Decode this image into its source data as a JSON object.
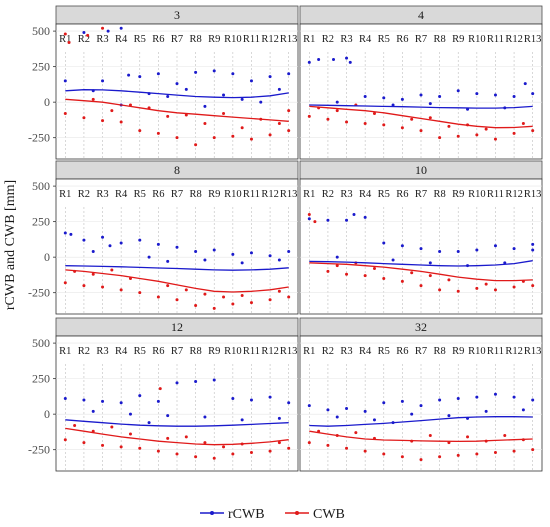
{
  "chart_data": {
    "type": "scatter",
    "ylabel": "rCWB and CWB [mm]",
    "xlabel": "",
    "ylim": [
      -400,
      550
    ],
    "yticks": [
      500,
      250,
      0,
      -250
    ],
    "region_labels": [
      "R1",
      "R2",
      "R3",
      "R4",
      "R5",
      "R6",
      "R7",
      "R8",
      "R9",
      "R10",
      "R11",
      "R12",
      "R13"
    ],
    "grid": true,
    "legend": {
      "placement": "bottom",
      "items": [
        {
          "name": "rCWB",
          "color": "#1a1acc"
        },
        {
          "name": "CWB",
          "color": "#e01a1a"
        }
      ]
    },
    "panels": [
      {
        "title": "3",
        "rCWB_trend": [
          80,
          88,
          86,
          80,
          70,
          60,
          50,
          40,
          35,
          32,
          35,
          45,
          65
        ],
        "CWB_trend": [
          20,
          10,
          0,
          -20,
          -40,
          -60,
          -75,
          -85,
          -95,
          -105,
          -115,
          -125,
          -135
        ],
        "rCWB_points": [
          [
            1,
            150
          ],
          [
            2,
            490
          ],
          [
            3,
            150
          ],
          [
            3.3,
            500
          ],
          [
            4,
            520
          ],
          [
            4.4,
            190
          ],
          [
            5,
            180
          ],
          [
            6,
            200
          ],
          [
            7,
            130
          ],
          [
            7.5,
            90
          ],
          [
            8,
            210
          ],
          [
            9,
            220
          ],
          [
            10,
            200
          ],
          [
            11,
            150
          ],
          [
            12,
            180
          ],
          [
            12.5,
            90
          ],
          [
            13,
            200
          ],
          [
            2.5,
            80
          ],
          [
            5.5,
            60
          ],
          [
            9.5,
            50
          ],
          [
            6.5,
            40
          ],
          [
            10.5,
            20
          ],
          [
            11.5,
            0
          ],
          [
            4,
            -20
          ],
          [
            8.5,
            -30
          ]
        ],
        "CWB_points": [
          [
            1,
            480
          ],
          [
            1.2,
            420
          ],
          [
            2.2,
            470
          ],
          [
            3,
            520
          ],
          [
            1,
            -80
          ],
          [
            2,
            -110
          ],
          [
            3,
            -130
          ],
          [
            4,
            -140
          ],
          [
            5,
            -200
          ],
          [
            6,
            -220
          ],
          [
            7,
            -250
          ],
          [
            8,
            -300
          ],
          [
            9,
            -250
          ],
          [
            10,
            -240
          ],
          [
            11,
            -260
          ],
          [
            12,
            -230
          ],
          [
            13,
            -200
          ],
          [
            3.5,
            -60
          ],
          [
            5.5,
            -40
          ],
          [
            7.5,
            -90
          ],
          [
            8.5,
            -150
          ],
          [
            10.5,
            -180
          ],
          [
            11.5,
            -120
          ],
          [
            12.5,
            -150
          ],
          [
            6.5,
            -100
          ],
          [
            2.5,
            20
          ],
          [
            4.5,
            -20
          ],
          [
            9.5,
            -80
          ],
          [
            13,
            -60
          ]
        ]
      },
      {
        "title": "4",
        "rCWB_trend": [
          -20,
          -22,
          -25,
          -27,
          -30,
          -32,
          -35,
          -38,
          -40,
          -42,
          -42,
          -38,
          -30
        ],
        "CWB_trend": [
          -30,
          -40,
          -50,
          -60,
          -75,
          -95,
          -115,
          -135,
          -155,
          -170,
          -180,
          -178,
          -170
        ],
        "rCWB_points": [
          [
            1,
            280
          ],
          [
            1.5,
            300
          ],
          [
            2.3,
            300
          ],
          [
            3,
            310
          ],
          [
            3.2,
            280
          ],
          [
            4,
            40
          ],
          [
            5,
            30
          ],
          [
            6,
            20
          ],
          [
            7,
            50
          ],
          [
            8,
            40
          ],
          [
            9,
            80
          ],
          [
            10,
            60
          ],
          [
            11,
            50
          ],
          [
            12,
            40
          ],
          [
            13,
            60
          ],
          [
            12.6,
            130
          ],
          [
            2.5,
            0
          ],
          [
            5.5,
            -20
          ],
          [
            9.5,
            -50
          ],
          [
            11.5,
            -40
          ],
          [
            7.5,
            -10
          ]
        ],
        "CWB_points": [
          [
            1,
            -100
          ],
          [
            2,
            -120
          ],
          [
            3,
            -140
          ],
          [
            4,
            -150
          ],
          [
            5,
            -160
          ],
          [
            6,
            -180
          ],
          [
            7,
            -200
          ],
          [
            8,
            -250
          ],
          [
            9,
            -240
          ],
          [
            10,
            -230
          ],
          [
            11,
            -260
          ],
          [
            12,
            -220
          ],
          [
            13,
            -200
          ],
          [
            2.5,
            -60
          ],
          [
            4.5,
            -80
          ],
          [
            6.5,
            -120
          ],
          [
            8.5,
            -170
          ],
          [
            10.5,
            -190
          ],
          [
            12.5,
            -150
          ],
          [
            1.5,
            -40
          ],
          [
            3.5,
            -20
          ],
          [
            7.5,
            -110
          ],
          [
            9.5,
            -160
          ]
        ]
      },
      {
        "title": "8",
        "rCWB_trend": [
          -60,
          -62,
          -65,
          -68,
          -72,
          -76,
          -80,
          -85,
          -90,
          -92,
          -90,
          -85,
          -75
        ],
        "CWB_trend": [
          -90,
          -100,
          -115,
          -130,
          -150,
          -170,
          -195,
          -220,
          -240,
          -245,
          -240,
          -230,
          -210
        ],
        "rCWB_points": [
          [
            1,
            170
          ],
          [
            1.3,
            160
          ],
          [
            2,
            120
          ],
          [
            3,
            140
          ],
          [
            3.4,
            80
          ],
          [
            4,
            100
          ],
          [
            5,
            120
          ],
          [
            6,
            90
          ],
          [
            7,
            70
          ],
          [
            8,
            40
          ],
          [
            9,
            50
          ],
          [
            10,
            20
          ],
          [
            11,
            30
          ],
          [
            12,
            10
          ],
          [
            13,
            40
          ],
          [
            2.5,
            40
          ],
          [
            5.5,
            0
          ],
          [
            8.5,
            -20
          ],
          [
            10.5,
            -40
          ],
          [
            12.5,
            -20
          ],
          [
            6.5,
            -30
          ]
        ],
        "CWB_points": [
          [
            1,
            -180
          ],
          [
            2,
            -200
          ],
          [
            3,
            -210
          ],
          [
            4,
            -230
          ],
          [
            5,
            -250
          ],
          [
            6,
            -280
          ],
          [
            7,
            -300
          ],
          [
            8,
            -340
          ],
          [
            9,
            -360
          ],
          [
            10,
            -330
          ],
          [
            11,
            -320
          ],
          [
            12,
            -300
          ],
          [
            13,
            -280
          ],
          [
            2.5,
            -120
          ],
          [
            4.5,
            -150
          ],
          [
            6.5,
            -200
          ],
          [
            8.5,
            -260
          ],
          [
            10.5,
            -270
          ],
          [
            12.5,
            -240
          ],
          [
            1.5,
            -100
          ],
          [
            3.5,
            -90
          ],
          [
            7.5,
            -230
          ],
          [
            9.5,
            -280
          ]
        ]
      },
      {
        "title": "10",
        "rCWB_trend": [
          -30,
          -32,
          -35,
          -40,
          -45,
          -50,
          -55,
          -60,
          -62,
          -60,
          -55,
          -45,
          -25
        ],
        "CWB_trend": [
          -40,
          -45,
          -50,
          -60,
          -70,
          -85,
          -100,
          -120,
          -140,
          -155,
          -165,
          -165,
          -160
        ],
        "rCWB_points": [
          [
            1,
            270
          ],
          [
            2,
            260
          ],
          [
            3,
            260
          ],
          [
            3.4,
            300
          ],
          [
            4,
            280
          ],
          [
            5,
            100
          ],
          [
            6,
            80
          ],
          [
            7,
            60
          ],
          [
            8,
            40
          ],
          [
            9,
            40
          ],
          [
            10,
            50
          ],
          [
            11,
            80
          ],
          [
            12,
            60
          ],
          [
            13,
            50
          ],
          [
            2.5,
            0
          ],
          [
            5.5,
            -20
          ],
          [
            7.5,
            -40
          ],
          [
            9.5,
            -60
          ],
          [
            11.5,
            -40
          ],
          [
            13,
            90
          ]
        ],
        "CWB_points": [
          [
            1,
            300
          ],
          [
            1.3,
            250
          ],
          [
            2,
            -100
          ],
          [
            3,
            -120
          ],
          [
            4,
            -130
          ],
          [
            5,
            -150
          ],
          [
            6,
            -170
          ],
          [
            7,
            -200
          ],
          [
            8,
            -230
          ],
          [
            9,
            -240
          ],
          [
            10,
            -220
          ],
          [
            11,
            -230
          ],
          [
            12,
            -210
          ],
          [
            13,
            -200
          ],
          [
            2.5,
            -60
          ],
          [
            4.5,
            -80
          ],
          [
            6.5,
            -110
          ],
          [
            8.5,
            -160
          ],
          [
            10.5,
            -190
          ],
          [
            12.5,
            -170
          ],
          [
            3.5,
            -40
          ],
          [
            7.5,
            -130
          ]
        ]
      },
      {
        "title": "12",
        "rCWB_trend": [
          -40,
          -50,
          -60,
          -70,
          -78,
          -82,
          -85,
          -85,
          -82,
          -78,
          -72,
          -66,
          -60
        ],
        "CWB_trend": [
          -100,
          -120,
          -140,
          -160,
          -175,
          -190,
          -200,
          -210,
          -215,
          -212,
          -205,
          -195,
          -180
        ],
        "rCWB_points": [
          [
            1,
            110
          ],
          [
            2,
            100
          ],
          [
            3,
            90
          ],
          [
            4,
            80
          ],
          [
            5,
            130
          ],
          [
            6,
            90
          ],
          [
            7,
            220
          ],
          [
            8,
            230
          ],
          [
            9,
            240
          ],
          [
            10,
            110
          ],
          [
            11,
            100
          ],
          [
            12,
            120
          ],
          [
            13,
            80
          ],
          [
            2.5,
            20
          ],
          [
            4.5,
            0
          ],
          [
            6.5,
            -10
          ],
          [
            8.5,
            -20
          ],
          [
            10.5,
            -40
          ],
          [
            12.5,
            -30
          ],
          [
            5.5,
            -60
          ]
        ],
        "CWB_points": [
          [
            1,
            -180
          ],
          [
            2,
            -200
          ],
          [
            3,
            -220
          ],
          [
            4,
            -230
          ],
          [
            5,
            -240
          ],
          [
            6,
            -260
          ],
          [
            7,
            -280
          ],
          [
            8,
            -300
          ],
          [
            9,
            -310
          ],
          [
            10,
            -280
          ],
          [
            11,
            -270
          ],
          [
            12,
            -260
          ],
          [
            13,
            -240
          ],
          [
            6.1,
            180
          ],
          [
            2.5,
            -120
          ],
          [
            4.5,
            -140
          ],
          [
            6.5,
            -170
          ],
          [
            8.5,
            -200
          ],
          [
            10.5,
            -210
          ],
          [
            12.5,
            -200
          ],
          [
            1.5,
            -80
          ],
          [
            3.5,
            -90
          ],
          [
            7.5,
            -160
          ],
          [
            9.5,
            -230
          ]
        ]
      },
      {
        "title": "32",
        "rCWB_trend": [
          -80,
          -85,
          -80,
          -72,
          -65,
          -55,
          -45,
          -35,
          -25,
          -20,
          -18,
          -18,
          -20
        ],
        "CWB_trend": [
          -120,
          -140,
          -160,
          -175,
          -182,
          -185,
          -188,
          -190,
          -192,
          -190,
          -185,
          -180,
          -175
        ],
        "rCWB_points": [
          [
            1,
            60
          ],
          [
            2,
            30
          ],
          [
            3,
            40
          ],
          [
            4,
            20
          ],
          [
            5,
            80
          ],
          [
            6,
            90
          ],
          [
            7,
            60
          ],
          [
            8,
            100
          ],
          [
            9,
            110
          ],
          [
            10,
            120
          ],
          [
            11,
            140
          ],
          [
            12,
            120
          ],
          [
            13,
            100
          ],
          [
            2.5,
            -20
          ],
          [
            4.5,
            -40
          ],
          [
            6.5,
            0
          ],
          [
            8.5,
            -10
          ],
          [
            10.5,
            20
          ],
          [
            12.5,
            30
          ],
          [
            5.5,
            -60
          ],
          [
            9.5,
            -30
          ]
        ],
        "CWB_points": [
          [
            1,
            -200
          ],
          [
            2,
            -220
          ],
          [
            3,
            -240
          ],
          [
            4,
            -260
          ],
          [
            5,
            -280
          ],
          [
            6,
            -300
          ],
          [
            7,
            -320
          ],
          [
            8,
            -300
          ],
          [
            9,
            -290
          ],
          [
            10,
            -280
          ],
          [
            11,
            -270
          ],
          [
            12,
            -260
          ],
          [
            13,
            -250
          ],
          [
            2.5,
            -150
          ],
          [
            4.5,
            -170
          ],
          [
            6.5,
            -190
          ],
          [
            8.5,
            -200
          ],
          [
            10.5,
            -190
          ],
          [
            12.5,
            -180
          ],
          [
            1.5,
            -120
          ],
          [
            3.5,
            -130
          ],
          [
            7.5,
            -150
          ],
          [
            9.5,
            -160
          ],
          [
            11.5,
            -150
          ]
        ]
      }
    ]
  }
}
